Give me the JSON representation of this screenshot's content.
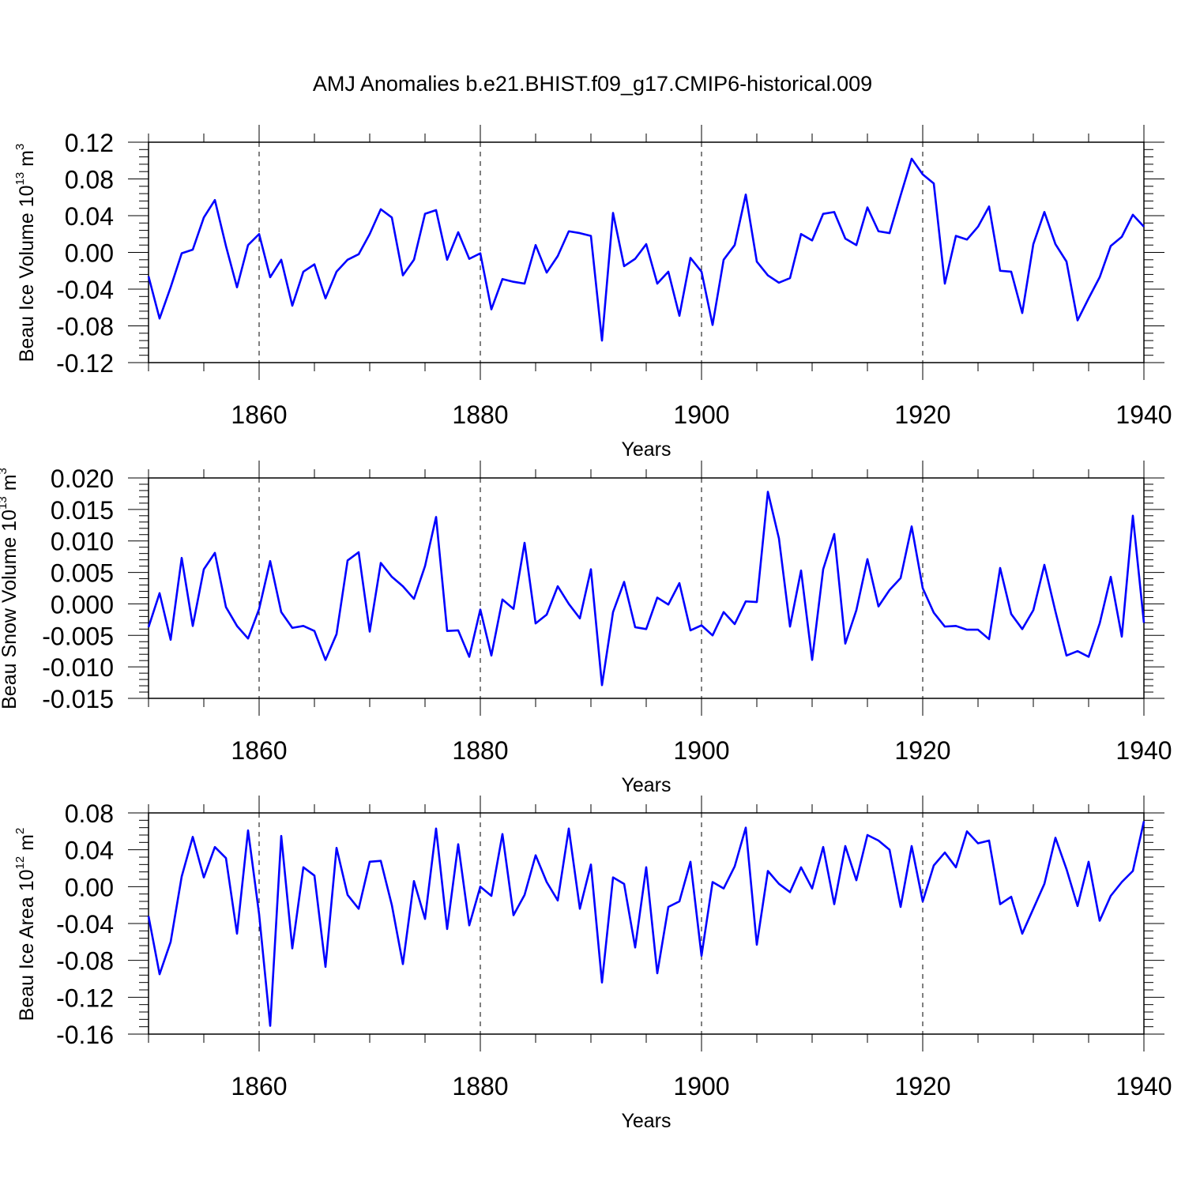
{
  "title": "AMJ Anomalies b.e21.BHIST.f09_g17.CMIP6-historical.009",
  "chart_data": [
    {
      "type": "line",
      "xlabel": "Years",
      "ylabel_main": "Beau Ice Volume 10",
      "ylabel_exp": "13",
      "ylabel_unit": " m",
      "ylabel_unit_exp": "3",
      "xlim": [
        1850,
        1940
      ],
      "ylim": [
        -0.12,
        0.12
      ],
      "xticks": [
        1860,
        1880,
        1900,
        1920,
        1940
      ],
      "xtick_labels": [
        "1860",
        "1880",
        "1900",
        "1920",
        "1940"
      ],
      "yticks": [
        0.12,
        0.08,
        0.04,
        0.0,
        -0.04,
        -0.08,
        -0.12
      ],
      "ytick_labels": [
        "0.12",
        "0.08",
        "0.04",
        "0.00",
        "-0.04",
        "-0.08",
        "-0.12"
      ],
      "color": "#0000ff",
      "x_start": 1850,
      "values": [
        -0.026,
        -0.072,
        -0.038,
        -0.001,
        0.003,
        0.038,
        0.057,
        0.007,
        -0.038,
        0.008,
        0.02,
        -0.027,
        -0.008,
        -0.058,
        -0.021,
        -0.013,
        -0.05,
        -0.021,
        -0.008,
        -0.002,
        0.02,
        0.047,
        0.038,
        -0.025,
        -0.008,
        0.042,
        0.046,
        -0.008,
        0.022,
        -0.007,
        -0.001,
        -0.062,
        -0.029,
        -0.032,
        -0.034,
        0.008,
        -0.022,
        -0.004,
        0.023,
        0.021,
        0.018,
        -0.096,
        0.043,
        -0.015,
        -0.007,
        0.009,
        -0.034,
        -0.021,
        -0.069,
        -0.006,
        -0.021,
        -0.079,
        -0.008,
        0.008,
        0.063,
        -0.01,
        -0.025,
        -0.033,
        -0.028,
        0.02,
        0.013,
        0.042,
        0.044,
        0.015,
        0.008,
        0.049,
        0.023,
        0.021,
        0.062,
        0.102,
        0.085,
        0.075,
        -0.034,
        0.018,
        0.014,
        0.028,
        0.05,
        -0.02,
        -0.021,
        -0.066,
        0.009,
        0.044,
        0.009,
        -0.01,
        -0.074,
        -0.05,
        -0.027,
        0.007,
        0.017,
        0.041,
        0.028
      ]
    },
    {
      "type": "line",
      "xlabel": "Years",
      "ylabel_main": "Beau Snow Volume 10",
      "ylabel_exp": "13",
      "ylabel_unit": " m",
      "ylabel_unit_exp": "3",
      "xlim": [
        1850,
        1940
      ],
      "ylim": [
        -0.015,
        0.02
      ],
      "xticks": [
        1860,
        1880,
        1900,
        1920,
        1940
      ],
      "xtick_labels": [
        "1860",
        "1880",
        "1900",
        "1920",
        "1940"
      ],
      "yticks": [
        0.02,
        0.015,
        0.01,
        0.005,
        0.0,
        -0.005,
        -0.01,
        -0.015
      ],
      "ytick_labels": [
        "0.020",
        "0.015",
        "0.010",
        "0.005",
        "0.000",
        "-0.005",
        "-0.010",
        "-0.015"
      ],
      "color": "#0000ff",
      "x_start": 1850,
      "values": [
        -0.0037,
        0.0017,
        -0.0057,
        0.0073,
        -0.0035,
        0.0055,
        0.0081,
        -0.0005,
        -0.0035,
        -0.0055,
        -0.0008,
        0.0068,
        -0.0013,
        -0.0038,
        -0.0035,
        -0.0043,
        -0.0089,
        -0.0048,
        0.0069,
        0.0082,
        -0.0044,
        0.0065,
        0.0043,
        0.0028,
        0.0008,
        0.006,
        0.0138,
        -0.0043,
        -0.0042,
        -0.0084,
        -0.0009,
        -0.0082,
        0.0007,
        -0.0008,
        0.0097,
        -0.0031,
        -0.0017,
        0.0028,
        0.0,
        -0.0023,
        0.0055,
        -0.0129,
        -0.0013,
        0.0035,
        -0.0037,
        -0.004,
        0.001,
        -0.0001,
        0.0033,
        -0.0042,
        -0.0034,
        -0.005,
        -0.0013,
        -0.0032,
        0.0004,
        0.0003,
        0.0178,
        0.0104,
        -0.0036,
        0.0053,
        -0.0089,
        0.0055,
        0.0111,
        -0.0063,
        -0.001,
        0.0071,
        -0.0004,
        0.0022,
        0.0041,
        0.0123,
        0.0025,
        -0.0014,
        -0.0036,
        -0.0035,
        -0.0041,
        -0.0041,
        -0.0056,
        0.0057,
        -0.0016,
        -0.004,
        -0.001,
        0.0062,
        -0.0012,
        -0.0082,
        -0.0075,
        -0.0084,
        -0.0031,
        0.0043,
        -0.0052,
        0.014,
        -0.003
      ]
    },
    {
      "type": "line",
      "xlabel": "Years",
      "ylabel_main": "Beau Ice Area 10",
      "ylabel_exp": "12",
      "ylabel_unit": " m",
      "ylabel_unit_exp": "2",
      "xlim": [
        1850,
        1940
      ],
      "ylim": [
        -0.16,
        0.08
      ],
      "xticks": [
        1860,
        1880,
        1900,
        1920,
        1940
      ],
      "xtick_labels": [
        "1860",
        "1880",
        "1900",
        "1920",
        "1940"
      ],
      "yticks": [
        0.08,
        0.04,
        0.0,
        -0.04,
        -0.08,
        -0.12,
        -0.16
      ],
      "ytick_labels": [
        "0.08",
        "0.04",
        "0.00",
        "-0.04",
        "-0.08",
        "-0.12",
        "-0.16"
      ],
      "color": "#0000ff",
      "x_start": 1850,
      "values": [
        -0.032,
        -0.095,
        -0.06,
        0.011,
        0.054,
        0.01,
        0.043,
        0.031,
        -0.051,
        0.061,
        -0.03,
        -0.151,
        0.055,
        -0.067,
        0.021,
        0.012,
        -0.087,
        0.042,
        -0.009,
        -0.024,
        0.027,
        0.028,
        -0.02,
        -0.084,
        0.006,
        -0.035,
        0.063,
        -0.046,
        0.046,
        -0.042,
        0.0,
        -0.01,
        0.057,
        -0.031,
        -0.009,
        0.034,
        0.005,
        -0.015,
        0.063,
        -0.024,
        0.024,
        -0.104,
        0.01,
        0.003,
        -0.066,
        0.021,
        -0.094,
        -0.022,
        -0.016,
        0.027,
        -0.075,
        0.005,
        -0.002,
        0.022,
        0.064,
        -0.063,
        0.017,
        0.003,
        -0.006,
        0.021,
        -0.002,
        0.043,
        -0.019,
        0.044,
        0.007,
        0.056,
        0.05,
        0.04,
        -0.022,
        0.044,
        -0.016,
        0.023,
        0.037,
        0.021,
        0.06,
        0.047,
        0.05,
        -0.019,
        -0.011,
        -0.051,
        -0.024,
        0.003,
        0.053,
        0.019,
        -0.021,
        0.027,
        -0.037,
        -0.01,
        0.005,
        0.017,
        0.071
      ]
    }
  ]
}
